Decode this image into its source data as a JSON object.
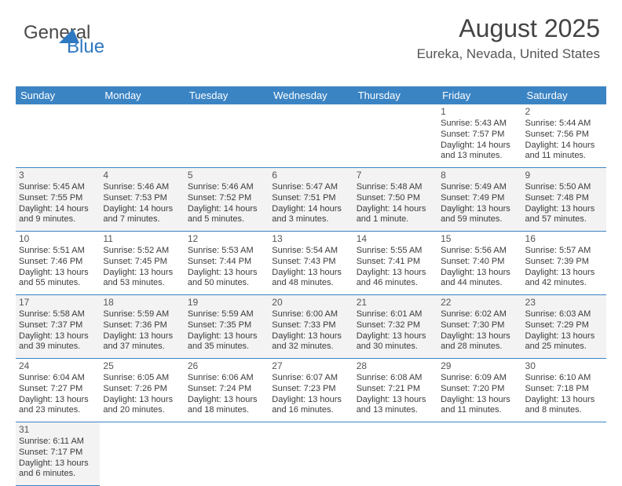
{
  "brand": {
    "part1": "General",
    "part2": "Blue",
    "sail_color": "#2f78c2"
  },
  "title": "August 2025",
  "subtitle": "Eureka, Nevada, United States",
  "header_bg": "#3b84c4",
  "header_fg": "#ffffff",
  "row_border": "#3b84c4",
  "shade_a": "#f3f3f3",
  "shade_b": "#ffffff",
  "text_color": "#3b3b3b",
  "font_family": "Arial",
  "daynum_fontsize": 12,
  "cell_fontsize": 11,
  "days": [
    "Sunday",
    "Monday",
    "Tuesday",
    "Wednesday",
    "Thursday",
    "Friday",
    "Saturday"
  ],
  "first_weekday": 5,
  "num_days": 31,
  "cells": {
    "1": {
      "sunrise": "5:43 AM",
      "sunset": "7:57 PM",
      "daylight": "14 hours and 13 minutes."
    },
    "2": {
      "sunrise": "5:44 AM",
      "sunset": "7:56 PM",
      "daylight": "14 hours and 11 minutes."
    },
    "3": {
      "sunrise": "5:45 AM",
      "sunset": "7:55 PM",
      "daylight": "14 hours and 9 minutes."
    },
    "4": {
      "sunrise": "5:46 AM",
      "sunset": "7:53 PM",
      "daylight": "14 hours and 7 minutes."
    },
    "5": {
      "sunrise": "5:46 AM",
      "sunset": "7:52 PM",
      "daylight": "14 hours and 5 minutes."
    },
    "6": {
      "sunrise": "5:47 AM",
      "sunset": "7:51 PM",
      "daylight": "14 hours and 3 minutes."
    },
    "7": {
      "sunrise": "5:48 AM",
      "sunset": "7:50 PM",
      "daylight": "14 hours and 1 minute."
    },
    "8": {
      "sunrise": "5:49 AM",
      "sunset": "7:49 PM",
      "daylight": "13 hours and 59 minutes."
    },
    "9": {
      "sunrise": "5:50 AM",
      "sunset": "7:48 PM",
      "daylight": "13 hours and 57 minutes."
    },
    "10": {
      "sunrise": "5:51 AM",
      "sunset": "7:46 PM",
      "daylight": "13 hours and 55 minutes."
    },
    "11": {
      "sunrise": "5:52 AM",
      "sunset": "7:45 PM",
      "daylight": "13 hours and 53 minutes."
    },
    "12": {
      "sunrise": "5:53 AM",
      "sunset": "7:44 PM",
      "daylight": "13 hours and 50 minutes."
    },
    "13": {
      "sunrise": "5:54 AM",
      "sunset": "7:43 PM",
      "daylight": "13 hours and 48 minutes."
    },
    "14": {
      "sunrise": "5:55 AM",
      "sunset": "7:41 PM",
      "daylight": "13 hours and 46 minutes."
    },
    "15": {
      "sunrise": "5:56 AM",
      "sunset": "7:40 PM",
      "daylight": "13 hours and 44 minutes."
    },
    "16": {
      "sunrise": "5:57 AM",
      "sunset": "7:39 PM",
      "daylight": "13 hours and 42 minutes."
    },
    "17": {
      "sunrise": "5:58 AM",
      "sunset": "7:37 PM",
      "daylight": "13 hours and 39 minutes."
    },
    "18": {
      "sunrise": "5:59 AM",
      "sunset": "7:36 PM",
      "daylight": "13 hours and 37 minutes."
    },
    "19": {
      "sunrise": "5:59 AM",
      "sunset": "7:35 PM",
      "daylight": "13 hours and 35 minutes."
    },
    "20": {
      "sunrise": "6:00 AM",
      "sunset": "7:33 PM",
      "daylight": "13 hours and 32 minutes."
    },
    "21": {
      "sunrise": "6:01 AM",
      "sunset": "7:32 PM",
      "daylight": "13 hours and 30 minutes."
    },
    "22": {
      "sunrise": "6:02 AM",
      "sunset": "7:30 PM",
      "daylight": "13 hours and 28 minutes."
    },
    "23": {
      "sunrise": "6:03 AM",
      "sunset": "7:29 PM",
      "daylight": "13 hours and 25 minutes."
    },
    "24": {
      "sunrise": "6:04 AM",
      "sunset": "7:27 PM",
      "daylight": "13 hours and 23 minutes."
    },
    "25": {
      "sunrise": "6:05 AM",
      "sunset": "7:26 PM",
      "daylight": "13 hours and 20 minutes."
    },
    "26": {
      "sunrise": "6:06 AM",
      "sunset": "7:24 PM",
      "daylight": "13 hours and 18 minutes."
    },
    "27": {
      "sunrise": "6:07 AM",
      "sunset": "7:23 PM",
      "daylight": "13 hours and 16 minutes."
    },
    "28": {
      "sunrise": "6:08 AM",
      "sunset": "7:21 PM",
      "daylight": "13 hours and 13 minutes."
    },
    "29": {
      "sunrise": "6:09 AM",
      "sunset": "7:20 PM",
      "daylight": "13 hours and 11 minutes."
    },
    "30": {
      "sunrise": "6:10 AM",
      "sunset": "7:18 PM",
      "daylight": "13 hours and 8 minutes."
    },
    "31": {
      "sunrise": "6:11 AM",
      "sunset": "7:17 PM",
      "daylight": "13 hours and 6 minutes."
    }
  },
  "labels": {
    "sunrise": "Sunrise: ",
    "sunset": "Sunset: ",
    "daylight": "Daylight: "
  }
}
